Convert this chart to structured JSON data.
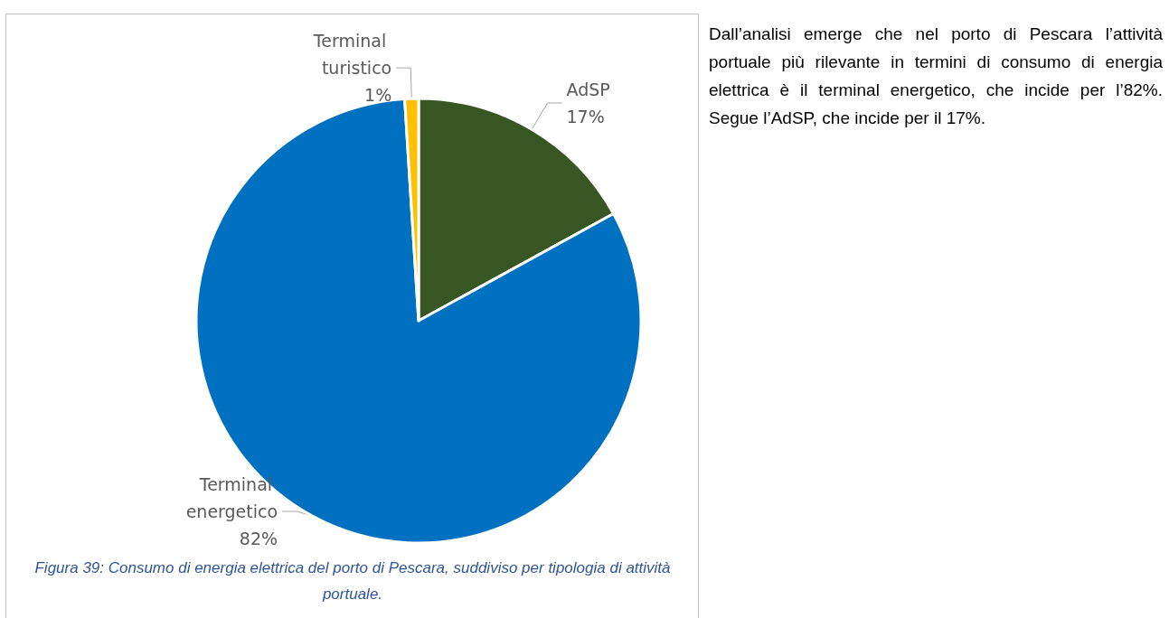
{
  "chart_data": {
    "type": "pie",
    "categories": [
      "AdSP",
      "Terminal energetico",
      "Terminal turistico"
    ],
    "values": [
      17,
      82,
      1
    ],
    "colors": [
      "#375623",
      "#0070c0",
      "#ffc000"
    ],
    "value_labels": [
      "17%",
      "82%",
      "1%"
    ],
    "legend": false,
    "annotations": [
      "Dall’analisi emerge che nel porto di Pescara l’attività portuale più rilevante in termini di consumo di energia elettrica è il terminal energetico, che incide per l’82%. Segue l’AdSP, che incide per il 17%.",
      "Figura 39: Consumo di energia elettrica del porto di Pescara, suddiviso per tipologia di attività portuale."
    ]
  }
}
